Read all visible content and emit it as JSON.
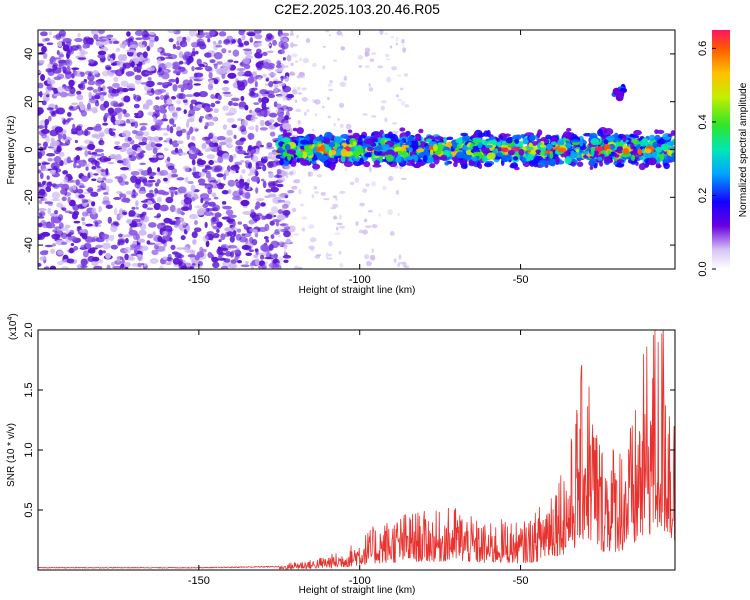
{
  "title": "C2E2.2025.103.20.46.R05",
  "colors": {
    "snr_line": "#e8322e",
    "noise_blob": "#5a14d6",
    "noise_blob_light": "#c9b2f0"
  },
  "chart_data": [
    {
      "type": "heatmap",
      "xlabel": "Height of straight line (km)",
      "ylabel": "Frequency (Hz)",
      "xlim": [
        -200,
        -2
      ],
      "ylim": [
        -50,
        50
      ],
      "x_ticks": [
        -150,
        -100,
        -50
      ],
      "x_tick_labels": [
        "-150",
        "-100",
        "-50"
      ],
      "y_ticks": [
        -40,
        -20,
        0,
        20,
        40
      ],
      "y_tick_labels": [
        "-40",
        "-20",
        "0",
        "20",
        "40"
      ],
      "colorbar": {
        "label": "Normalized spectral amplitude",
        "range": [
          0.0,
          0.65
        ],
        "ticks": [
          0.0,
          0.2,
          0.4,
          0.6
        ],
        "tick_labels": [
          "0.0",
          "0.2",
          "0.4",
          "0.6"
        ],
        "colormap": "rainbow"
      },
      "features": {
        "noise_region_x": [
          -200,
          -125
        ],
        "signal_band_x": [
          -125,
          -2
        ],
        "signal_band_center_hz": 0,
        "signal_band_halfwidth_hz": 5,
        "peak_amplitude": 0.6
      },
      "grid": false
    },
    {
      "type": "line",
      "xlabel": "Height of straight line (km)",
      "ylabel": "SNR (10 * v/v)",
      "y_scale_label": "(x10",
      "y_scale_exponent": "4",
      "y_scale_suffix": ")",
      "xlim": [
        -200,
        -2
      ],
      "ylim": [
        0,
        2.0
      ],
      "x_ticks": [
        -150,
        -100,
        -50
      ],
      "x_tick_labels": [
        "-150",
        "-100",
        "-50"
      ],
      "y_ticks": [
        0.5,
        1.0,
        1.5,
        2.0
      ],
      "y_tick_labels": [
        "0.5",
        "1.0",
        "1.5",
        "2.0"
      ],
      "series_envelope": [
        {
          "x": -200,
          "y": 0.02
        },
        {
          "x": -175,
          "y": 0.02
        },
        {
          "x": -150,
          "y": 0.02
        },
        {
          "x": -125,
          "y": 0.03
        },
        {
          "x": -120,
          "y": 0.07
        },
        {
          "x": -115,
          "y": 0.08
        },
        {
          "x": -105,
          "y": 0.15
        },
        {
          "x": -95,
          "y": 0.35
        },
        {
          "x": -85,
          "y": 0.45
        },
        {
          "x": -75,
          "y": 0.45
        },
        {
          "x": -70,
          "y": 0.5
        },
        {
          "x": -65,
          "y": 0.4
        },
        {
          "x": -60,
          "y": 0.35
        },
        {
          "x": -55,
          "y": 0.4
        },
        {
          "x": -50,
          "y": 0.35
        },
        {
          "x": -45,
          "y": 0.45
        },
        {
          "x": -40,
          "y": 0.75
        },
        {
          "x": -35,
          "y": 0.9
        },
        {
          "x": -30,
          "y": 1.73
        },
        {
          "x": -25,
          "y": 1.0
        },
        {
          "x": -20,
          "y": 1.0
        },
        {
          "x": -15,
          "y": 1.15
        },
        {
          "x": -10,
          "y": 1.9
        },
        {
          "x": -5,
          "y": 2.0
        },
        {
          "x": -2,
          "y": 1.2
        }
      ],
      "grid": false
    }
  ]
}
